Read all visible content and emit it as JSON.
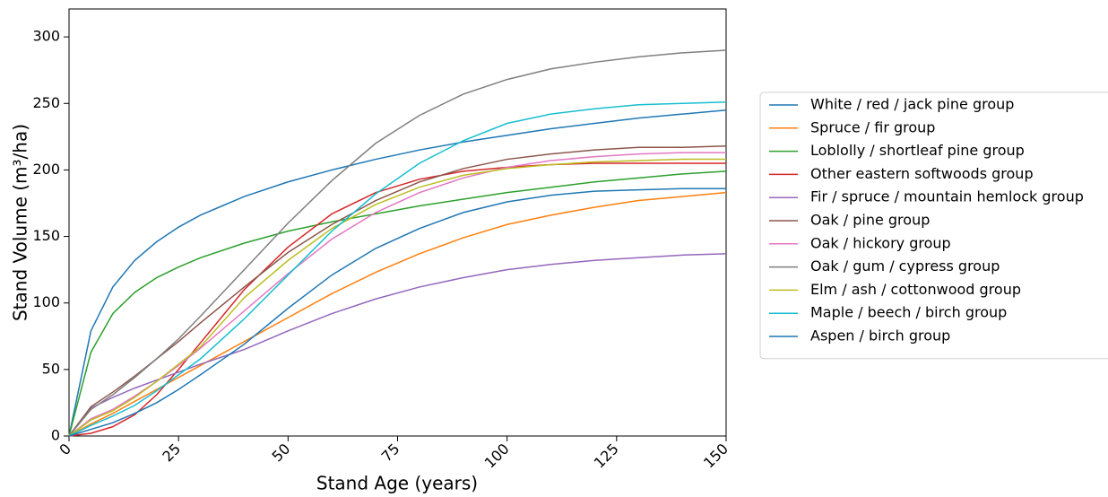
{
  "chart_data": {
    "type": "line",
    "x_label": "Stand Age (years)",
    "y_label": "Stand Volume (m³/ha)",
    "x": [
      0,
      5,
      10,
      15,
      20,
      25,
      30,
      40,
      50,
      60,
      70,
      80,
      90,
      100,
      110,
      120,
      130,
      140,
      150
    ],
    "xlim": [
      0,
      150
    ],
    "xticks": [
      0,
      25,
      50,
      75,
      100,
      125,
      150
    ],
    "ylim": [
      0,
      321
    ],
    "yticks": [
      0,
      50,
      100,
      150,
      200,
      250,
      300
    ],
    "legend": "outside right",
    "series": [
      {
        "name": "White / red / jack pine group",
        "color": "#1f77b4",
        "values": [
          0,
          79,
          112,
          132,
          146,
          157,
          166,
          180,
          191,
          200,
          208,
          215,
          221,
          226,
          231,
          235,
          239,
          242,
          245
        ]
      },
      {
        "name": "Spruce / fir group",
        "color": "#ff7f0e",
        "values": [
          0,
          9,
          17,
          26,
          35,
          44,
          53,
          71,
          89,
          107,
          123,
          137,
          149,
          159,
          166,
          172,
          177,
          180,
          183
        ]
      },
      {
        "name": "Loblolly / shortleaf pine group",
        "color": "#2ca02c",
        "values": [
          0,
          63,
          92,
          108,
          119,
          127,
          134,
          145,
          154,
          161,
          167,
          173,
          178,
          183,
          187,
          191,
          194,
          197,
          199
        ]
      },
      {
        "name": "Other eastern softwoods group",
        "color": "#d62728",
        "values": [
          0,
          2,
          7,
          16,
          31,
          50,
          70,
          110,
          142,
          167,
          183,
          193,
          199,
          202,
          204,
          205,
          205,
          205,
          205
        ]
      },
      {
        "name": "Fir / spruce / mountain hemlock group",
        "color": "#9467bd",
        "values": [
          0,
          21,
          29,
          36,
          42,
          48,
          54,
          65,
          79,
          92,
          103,
          112,
          119,
          125,
          129,
          132,
          134,
          136,
          137
        ]
      },
      {
        "name": "Oak / pine group",
        "color": "#8c564b",
        "values": [
          0,
          22,
          33,
          45,
          58,
          71,
          85,
          112,
          138,
          159,
          177,
          191,
          201,
          208,
          212,
          215,
          217,
          217,
          218
        ]
      },
      {
        "name": "Oak / hickory group",
        "color": "#e377c2",
        "values": [
          0,
          13,
          20,
          30,
          41,
          53,
          66,
          94,
          122,
          148,
          168,
          183,
          194,
          202,
          207,
          210,
          212,
          213,
          213
        ]
      },
      {
        "name": "Oak / gum / cypress group",
        "color": "#7f7f7f",
        "values": [
          0,
          20,
          31,
          44,
          58,
          73,
          90,
          125,
          160,
          192,
          220,
          241,
          257,
          268,
          276,
          281,
          285,
          288,
          290
        ]
      },
      {
        "name": "Elm / ash / cottonwood group",
        "color": "#bcbd22",
        "values": [
          0,
          12,
          19,
          29,
          41,
          54,
          67,
          104,
          132,
          156,
          174,
          187,
          196,
          201,
          204,
          206,
          207,
          208,
          208
        ]
      },
      {
        "name": "Maple / beech / birch group",
        "color": "#17becf",
        "values": [
          0,
          8,
          15,
          23,
          34,
          46,
          58,
          88,
          121,
          154,
          182,
          205,
          222,
          235,
          242,
          246,
          249,
          250,
          251
        ]
      },
      {
        "name": "Aspen / birch group",
        "color": "#1f77b4",
        "values": [
          0,
          5,
          10,
          17,
          25,
          35,
          46,
          69,
          96,
          121,
          141,
          156,
          168,
          176,
          181,
          184,
          185,
          186,
          186
        ]
      }
    ]
  }
}
